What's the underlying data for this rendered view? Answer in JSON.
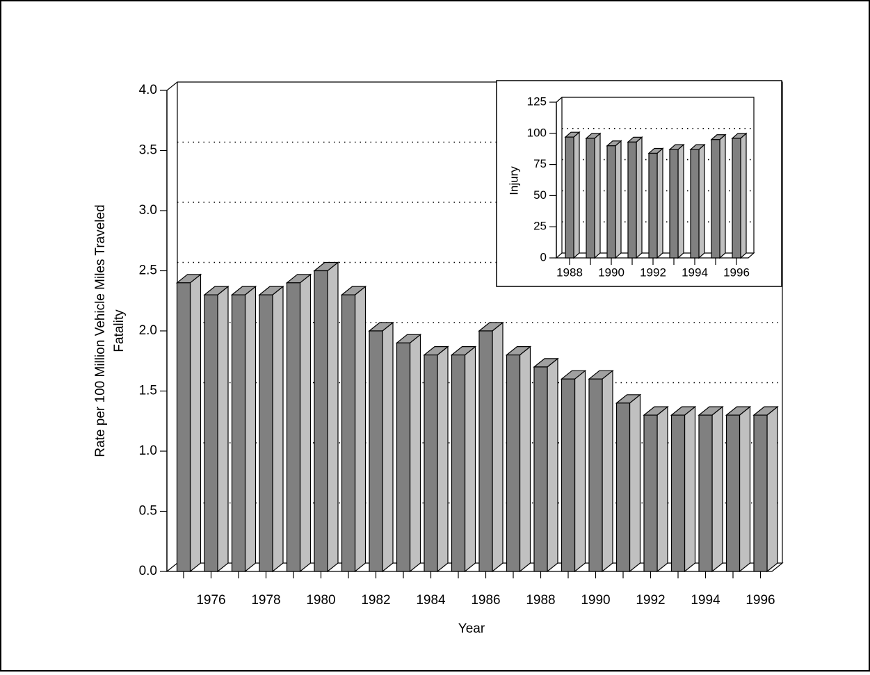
{
  "chart_data": [
    {
      "type": "bar3d",
      "y_label": [
        "Rate per 100 Million Vehicle Miles Traveled",
        "Fatality"
      ],
      "x_label": "Year",
      "categories": [
        null,
        "1976",
        null,
        "1978",
        null,
        "1980",
        null,
        "1982",
        null,
        "1984",
        null,
        "1986",
        null,
        "1988",
        null,
        "1990",
        null,
        "1992",
        null,
        "1994",
        null,
        "1996"
      ],
      "values": [
        2.4,
        2.3,
        2.3,
        2.3,
        2.4,
        2.5,
        2.3,
        2.0,
        1.9,
        1.8,
        1.8,
        2.0,
        1.8,
        1.7,
        1.6,
        1.6,
        1.4,
        1.3,
        1.3,
        1.3,
        1.3,
        1.3
      ],
      "ylim": [
        0,
        4
      ],
      "yticks": [
        {
          "value": 0,
          "label": "0.0"
        },
        {
          "value": 0.5,
          "label": "0.5"
        },
        {
          "value": 1,
          "label": "1.0"
        },
        {
          "value": 1.5,
          "label": "1.5"
        },
        {
          "value": 2,
          "label": "2.0"
        },
        {
          "value": 2.5,
          "label": "2.5"
        },
        {
          "value": 3,
          "label": "3.0"
        },
        {
          "value": 3.5,
          "label": "3.5"
        },
        {
          "value": 4,
          "label": "4.0"
        }
      ],
      "grid": true,
      "color": "#808080"
    },
    {
      "type": "bar3d",
      "y_label": [
        "Injury"
      ],
      "categories": [
        "1988",
        null,
        "1990",
        null,
        "1992",
        null,
        "1994",
        null,
        "1996"
      ],
      "values": [
        97,
        96,
        90,
        93,
        84,
        87,
        87,
        95,
        96
      ],
      "ylim": [
        0,
        125
      ],
      "yticks": [
        0,
        25,
        50,
        75,
        100,
        125
      ],
      "grid": true,
      "color": "#808080"
    }
  ]
}
